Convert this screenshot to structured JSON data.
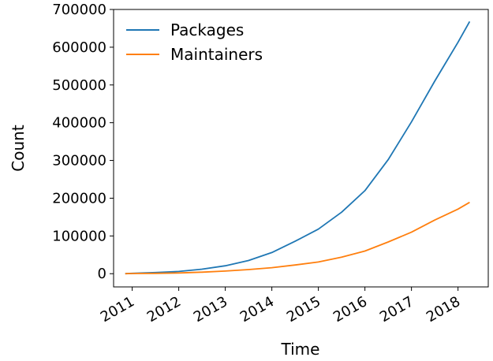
{
  "chart_data": {
    "type": "line",
    "title": "",
    "xlabel": "Time",
    "ylabel": "Count",
    "xlim": [
      2010.6,
      2018.65
    ],
    "ylim": [
      -35000,
      700000
    ],
    "xticks": [
      2011,
      2012,
      2013,
      2014,
      2015,
      2016,
      2017,
      2018
    ],
    "xtick_labels": [
      "2011",
      "2012",
      "2013",
      "2014",
      "2015",
      "2016",
      "2017",
      "2018"
    ],
    "yticks": [
      0,
      100000,
      200000,
      300000,
      400000,
      500000,
      600000,
      700000
    ],
    "ytick_labels": [
      "0",
      "100000",
      "200000",
      "300000",
      "400000",
      "500000",
      "600000",
      "700000"
    ],
    "grid": false,
    "legend_position": "top-left",
    "series": [
      {
        "name": "Packages",
        "color": "#1f77b4",
        "x": [
          2010.85,
          2011.0,
          2011.5,
          2012.0,
          2012.5,
          2013.0,
          2013.5,
          2014.0,
          2014.5,
          2015.0,
          2015.5,
          2016.0,
          2016.5,
          2017.0,
          2017.5,
          2018.0,
          2018.25
        ],
        "y": [
          0,
          1000,
          3000,
          6000,
          12000,
          21000,
          35000,
          56000,
          86000,
          118000,
          163000,
          220000,
          302000,
          402000,
          510000,
          613000,
          668000
        ]
      },
      {
        "name": "Maintainers",
        "color": "#ff7f0e",
        "x": [
          2010.85,
          2011.0,
          2011.5,
          2012.0,
          2012.5,
          2013.0,
          2013.5,
          2014.0,
          2014.5,
          2015.0,
          2015.5,
          2016.0,
          2016.5,
          2017.0,
          2017.5,
          2018.0,
          2018.25
        ],
        "y": [
          0,
          500,
          1000,
          2000,
          4000,
          7000,
          11000,
          16000,
          23000,
          31000,
          44000,
          60000,
          84000,
          110000,
          142000,
          171000,
          189000
        ]
      }
    ]
  }
}
